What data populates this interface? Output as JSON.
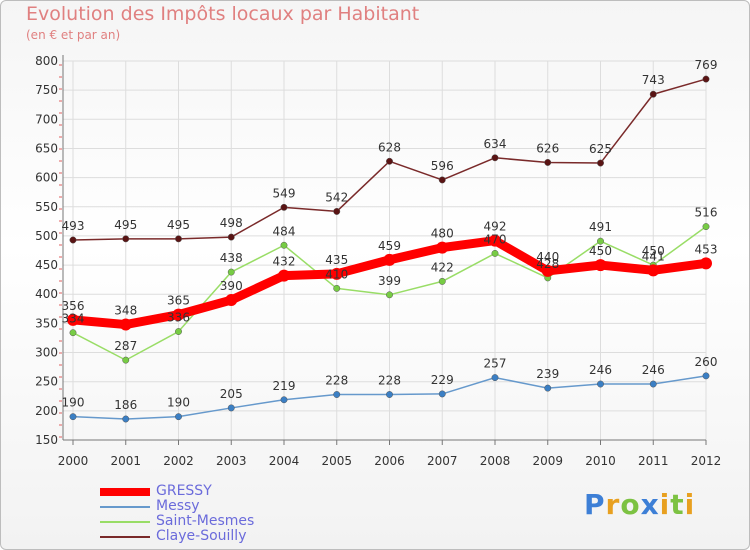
{
  "title": "Evolution des Impôts locaux par Habitant",
  "subtitle": "(en € et par an)",
  "logo": "Proxiti",
  "colors": {
    "logo": [
      "#3d7fd6",
      "#e8a020",
      "#7cc242",
      "#3d7fd6",
      "#e8a020",
      "#7cc242",
      "#e8a020"
    ]
  },
  "chart_data": {
    "type": "line",
    "categories": [
      "2000",
      "2001",
      "2002",
      "2003",
      "2004",
      "2005",
      "2006",
      "2007",
      "2008",
      "2009",
      "2010",
      "2011",
      "2012"
    ],
    "ylim": [
      150,
      800
    ],
    "yticks": [
      150,
      200,
      250,
      300,
      350,
      400,
      450,
      500,
      550,
      600,
      650,
      700,
      750,
      800
    ],
    "grid": true,
    "legend_position": "bottom-left",
    "series": [
      {
        "name": "Claye-Souilly",
        "color": "#7a2a2a",
        "marker": "#5a1414",
        "values": [
          493,
          495,
          495,
          498,
          549,
          542,
          628,
          596,
          634,
          626,
          625,
          743,
          769
        ]
      },
      {
        "name": "Messy",
        "color": "#6699cc",
        "marker": "#3b7fc4",
        "values": [
          190,
          186,
          190,
          205,
          219,
          228,
          228,
          229,
          257,
          239,
          246,
          246,
          260
        ]
      },
      {
        "name": "Saint-Mesmes",
        "color": "#99dd66",
        "marker": "#77cc44",
        "values": [
          334,
          287,
          336,
          438,
          484,
          410,
          399,
          422,
          470,
          428,
          491,
          450,
          516
        ]
      },
      {
        "name": "GRESSY",
        "color": "#ff0000",
        "marker": "#ff0000",
        "values": [
          356,
          348,
          365,
          390,
          432,
          435,
          459,
          480,
          492,
          440,
          450,
          441,
          453
        ]
      }
    ],
    "legend": [
      "GRESSY",
      "Messy",
      "Saint-Mesmes",
      "Claye-Souilly"
    ]
  }
}
